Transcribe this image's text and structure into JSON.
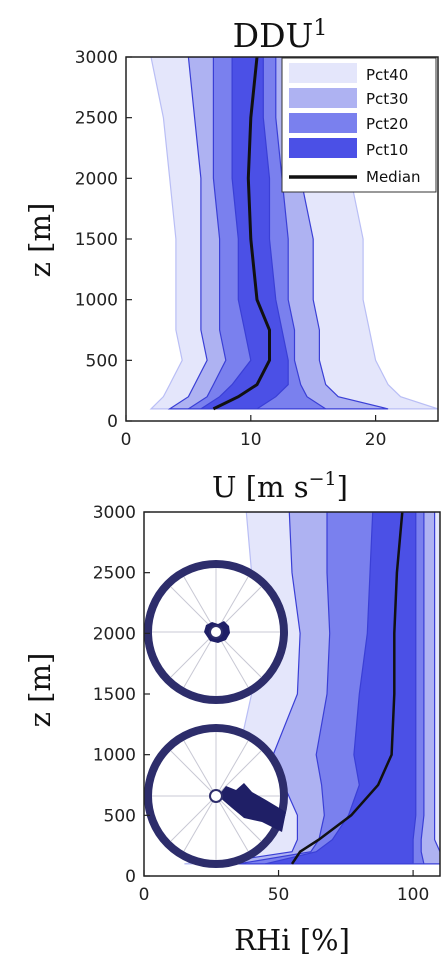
{
  "colors": {
    "pct40": "#e4e6fb",
    "pct30": "#aeb2f2",
    "pct20": "#7a80ee",
    "pct10": "#4b50e6",
    "edge40": "#b9bef5",
    "edge": "#3a3fd6",
    "median": "#111111",
    "wheel": "#2d2d6b"
  },
  "chart_data": [
    {
      "type": "area",
      "title": "DDU",
      "title_sup": "1",
      "xlabel": "U [m s",
      "xlabel_sup": "−1",
      "xlabel_end": "]",
      "ylabel": "z [m]",
      "xlim": [
        0,
        25
      ],
      "ylim": [
        0,
        3000
      ],
      "xticks": [
        "0",
        "10",
        "20"
      ],
      "xtick_values": [
        0,
        10,
        20
      ],
      "yticks": [
        "0",
        "500",
        "1000",
        "1500",
        "2000",
        "2500",
        "3000"
      ],
      "ytick_values": [
        0,
        500,
        1000,
        1500,
        2000,
        2500,
        3000
      ],
      "legend_position": "top-right",
      "legend": [
        "Pct40",
        "Pct30",
        "Pct20",
        "Pct10",
        "Median"
      ],
      "z": [
        100,
        200,
        300,
        500,
        750,
        1000,
        1500,
        2000,
        2500,
        3000
      ],
      "series": [
        {
          "name": "Pct40",
          "lower": [
            2,
            3,
            3.5,
            4.5,
            4,
            4,
            4,
            3.5,
            3,
            2
          ],
          "upper": [
            25,
            22,
            21,
            20,
            19.5,
            19,
            19,
            18,
            16,
            14
          ]
        },
        {
          "name": "Pct30",
          "lower": [
            3.5,
            5,
            5.5,
            6.5,
            6,
            6,
            6,
            6,
            5.5,
            5
          ],
          "upper": [
            21,
            17,
            16,
            15.5,
            15.5,
            15,
            15,
            14,
            13,
            13
          ]
        },
        {
          "name": "Pct20",
          "lower": [
            5,
            6.5,
            7,
            8,
            7.5,
            7.5,
            7.5,
            7,
            7,
            7
          ],
          "upper": [
            16,
            14.5,
            14,
            13.5,
            13.5,
            13,
            13,
            12.5,
            12,
            12
          ]
        },
        {
          "name": "Pct10",
          "lower": [
            6,
            7.5,
            8.5,
            10,
            9.5,
            9,
            9,
            8.5,
            8.5,
            8.5
          ],
          "upper": [
            10.5,
            12,
            13,
            13,
            12.5,
            12,
            11.5,
            11.5,
            11,
            11
          ]
        },
        {
          "name": "Median",
          "values": [
            7,
            9,
            10.5,
            11.5,
            11.5,
            10.5,
            10,
            9.8,
            10,
            10.5
          ]
        }
      ]
    },
    {
      "type": "area",
      "xlabel": "RHi [%]",
      "ylabel": "z [m]",
      "xlim": [
        0,
        110
      ],
      "ylim": [
        0,
        3000
      ],
      "xticks": [
        "0",
        "50",
        "100"
      ],
      "xtick_values": [
        0,
        50,
        100
      ],
      "yticks": [
        "0",
        "500",
        "1000",
        "1500",
        "2000",
        "2500",
        "3000"
      ],
      "ytick_values": [
        0,
        500,
        1000,
        1500,
        2000,
        2500,
        3000
      ],
      "z": [
        100,
        200,
        300,
        500,
        750,
        1000,
        1500,
        2000,
        2500,
        3000
      ],
      "series": [
        {
          "name": "Pct40",
          "lower": [
            15,
            42,
            44,
            46,
            40,
            35,
            40,
            45,
            40,
            38
          ],
          "upper": [
            120,
            115,
            113,
            112,
            112,
            112,
            112,
            112,
            112,
            112
          ]
        },
        {
          "name": "Pct30",
          "lower": [
            25,
            55,
            57,
            57,
            52,
            48,
            57,
            58,
            55,
            54
          ],
          "upper": [
            112,
            110,
            108,
            108,
            108,
            108,
            108,
            108,
            108,
            108
          ]
        },
        {
          "name": "Pct20",
          "lower": [
            35,
            62,
            65,
            67,
            66,
            64,
            68,
            69,
            68,
            68
          ],
          "upper": [
            104,
            103,
            103,
            104,
            104,
            104,
            104,
            104,
            104,
            104
          ]
        },
        {
          "name": "Pct10",
          "lower": [
            45,
            64,
            70,
            76,
            80,
            78,
            80,
            83,
            84,
            85
          ],
          "upper": [
            100,
            100,
            100,
            101,
            101,
            101,
            101,
            101,
            101,
            101
          ]
        },
        {
          "name": "Median",
          "values": [
            55,
            58,
            65,
            77,
            87,
            92,
            93,
            93,
            94,
            96
          ]
        }
      ]
    }
  ]
}
